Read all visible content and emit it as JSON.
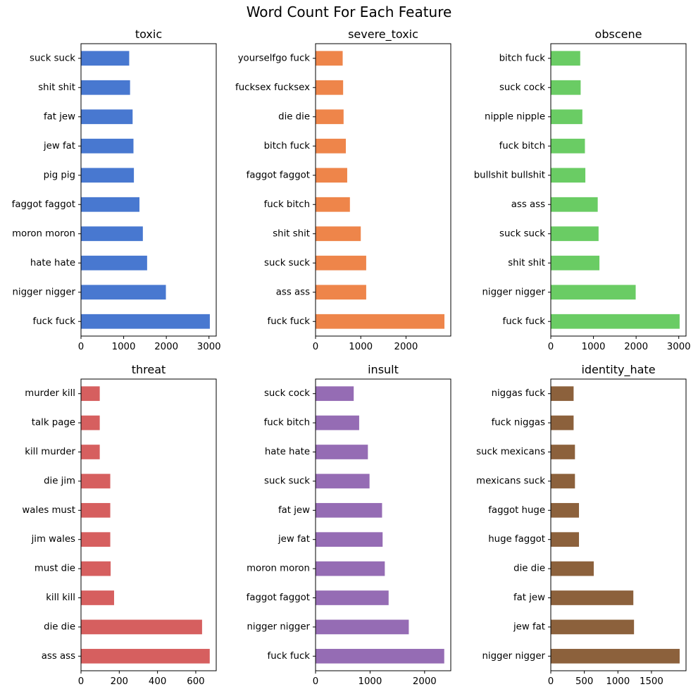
{
  "figure": {
    "title": "Word Count For Each Feature"
  },
  "chart_data": [
    {
      "type": "bar",
      "orientation": "horizontal",
      "title": "toxic",
      "color": "#4878d0",
      "categories": [
        "fuck fuck",
        "nigger nigger",
        "hate hate",
        "moron moron",
        "faggot faggot",
        "pig pig",
        "jew fat",
        "fat jew",
        "shit shit",
        "suck suck"
      ],
      "values": [
        3020,
        1990,
        1550,
        1450,
        1370,
        1240,
        1230,
        1210,
        1150,
        1130
      ],
      "xlim": [
        0,
        3170
      ],
      "xticks": [
        0,
        1000,
        2000,
        3000
      ],
      "xlabel": "",
      "ylabel": "",
      "grid": false
    },
    {
      "type": "bar",
      "orientation": "horizontal",
      "title": "severe_toxic",
      "color": "#ee854a",
      "categories": [
        "fuck fuck",
        "ass ass",
        "suck suck",
        "shit shit",
        "fuck bitch",
        "faggot faggot",
        "bitch fuck",
        "die die",
        "fucksex fucksex",
        "yourselfgo fuck"
      ],
      "values": [
        2850,
        1120,
        1120,
        1000,
        760,
        700,
        670,
        620,
        610,
        600
      ],
      "xlim": [
        0,
        2990
      ],
      "xticks": [
        0,
        1000,
        2000
      ],
      "xlabel": "",
      "ylabel": "",
      "grid": false
    },
    {
      "type": "bar",
      "orientation": "horizontal",
      "title": "obscene",
      "color": "#6acc64",
      "categories": [
        "fuck fuck",
        "nigger nigger",
        "shit shit",
        "suck suck",
        "ass ass",
        "bullshit bullshit",
        "fuck bitch",
        "nipple nipple",
        "suck cock",
        "bitch fuck"
      ],
      "values": [
        3020,
        1990,
        1140,
        1120,
        1100,
        810,
        800,
        740,
        700,
        690
      ],
      "xlim": [
        0,
        3170
      ],
      "xticks": [
        0,
        1000,
        2000,
        3000
      ],
      "xlabel": "",
      "ylabel": "",
      "grid": false
    },
    {
      "type": "bar",
      "orientation": "horizontal",
      "title": "threat",
      "color": "#d65f5f",
      "categories": [
        "ass ass",
        "die die",
        "kill kill",
        "must die",
        "jim wales",
        "wales must",
        "die jim",
        "kill murder",
        "talk page",
        "murder kill"
      ],
      "values": [
        673,
        633,
        173,
        155,
        153,
        153,
        153,
        98,
        98,
        98
      ],
      "xlim": [
        0,
        707
      ],
      "xticks": [
        0,
        200,
        400,
        600
      ],
      "xlabel": "",
      "ylabel": "",
      "grid": false
    },
    {
      "type": "bar",
      "orientation": "horizontal",
      "title": "insult",
      "color": "#956cb4",
      "categories": [
        "fuck fuck",
        "nigger nigger",
        "faggot faggot",
        "moron moron",
        "jew fat",
        "fat jew",
        "suck suck",
        "hate hate",
        "fuck bitch",
        "suck cock"
      ],
      "values": [
        2360,
        1710,
        1340,
        1270,
        1230,
        1220,
        990,
        960,
        800,
        700
      ],
      "xlim": [
        0,
        2480
      ],
      "xticks": [
        0,
        1000,
        2000
      ],
      "xlabel": "",
      "ylabel": "",
      "grid": false
    },
    {
      "type": "bar",
      "orientation": "horizontal",
      "title": "identity_hate",
      "color": "#8c613c",
      "categories": [
        "nigger nigger",
        "jew fat",
        "fat jew",
        "die die",
        "huge faggot",
        "faggot huge",
        "mexicans suck",
        "suck mexicans",
        "fuck niggas",
        "niggas fuck"
      ],
      "values": [
        1920,
        1240,
        1230,
        640,
        420,
        420,
        360,
        360,
        340,
        340
      ],
      "xlim": [
        0,
        2015
      ],
      "xticks": [
        0,
        500,
        1000,
        1500
      ],
      "xlabel": "",
      "ylabel": "",
      "grid": false
    }
  ]
}
